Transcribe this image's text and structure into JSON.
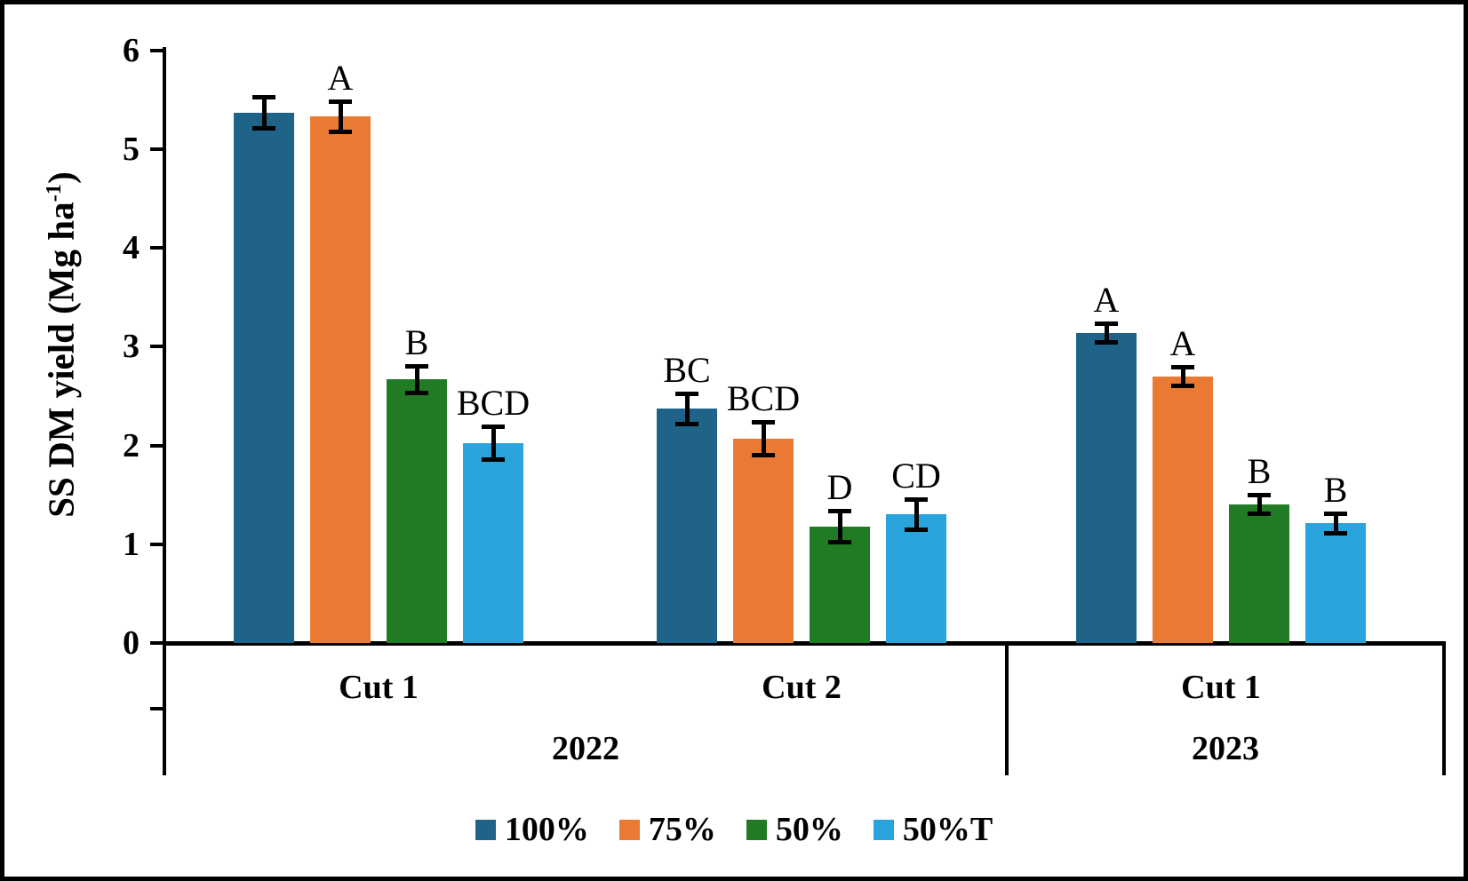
{
  "figure": {
    "background": "#ffffff",
    "border_color": "#000000"
  },
  "chart_data": {
    "type": "bar",
    "title": "",
    "ylabel": "SS DM yield (Mg ha-1)",
    "ylabel_parts": {
      "main": "SS DM yield (Mg ha",
      "sup": "-1",
      "close": ")"
    },
    "xlabel": "",
    "ylim": [
      0,
      6
    ],
    "yticks": [
      0,
      1,
      2,
      3,
      4,
      5,
      6
    ],
    "grid": false,
    "legend_position": "bottom-center",
    "error_bars": true,
    "error_bar_color": "#000000",
    "axis_color": "#000000",
    "categories": [
      {
        "cut": "Cut 1",
        "year": "2022"
      },
      {
        "cut": "Cut 2",
        "year": "2022"
      },
      {
        "cut": "Cut 1",
        "year": "2023"
      }
    ],
    "year_groups": [
      {
        "label": "2022",
        "cuts": [
          "Cut 1",
          "Cut 2"
        ]
      },
      {
        "label": "2023",
        "cuts": [
          "Cut 1"
        ]
      }
    ],
    "series": [
      {
        "name": "100%",
        "color": "#1f6388",
        "values": [
          5.37,
          2.37,
          3.14
        ],
        "errors": [
          0.16,
          0.16,
          0.1
        ],
        "letters": [
          "",
          "BC",
          "A"
        ]
      },
      {
        "name": "75%",
        "color": "#ea7a33",
        "values": [
          5.33,
          2.07,
          2.7
        ],
        "errors": [
          0.16,
          0.17,
          0.1
        ],
        "letters": [
          "A",
          "BCD",
          "A"
        ]
      },
      {
        "name": "50%",
        "color": "#217b25",
        "values": [
          2.67,
          1.18,
          1.4
        ],
        "errors": [
          0.14,
          0.16,
          0.1
        ],
        "letters": [
          "B",
          "D",
          "B"
        ]
      },
      {
        "name": "50%T",
        "color": "#29a4dc",
        "values": [
          2.02,
          1.3,
          1.21
        ],
        "errors": [
          0.17,
          0.16,
          0.1
        ],
        "letters": [
          "BCD",
          "CD",
          "B"
        ]
      }
    ]
  }
}
